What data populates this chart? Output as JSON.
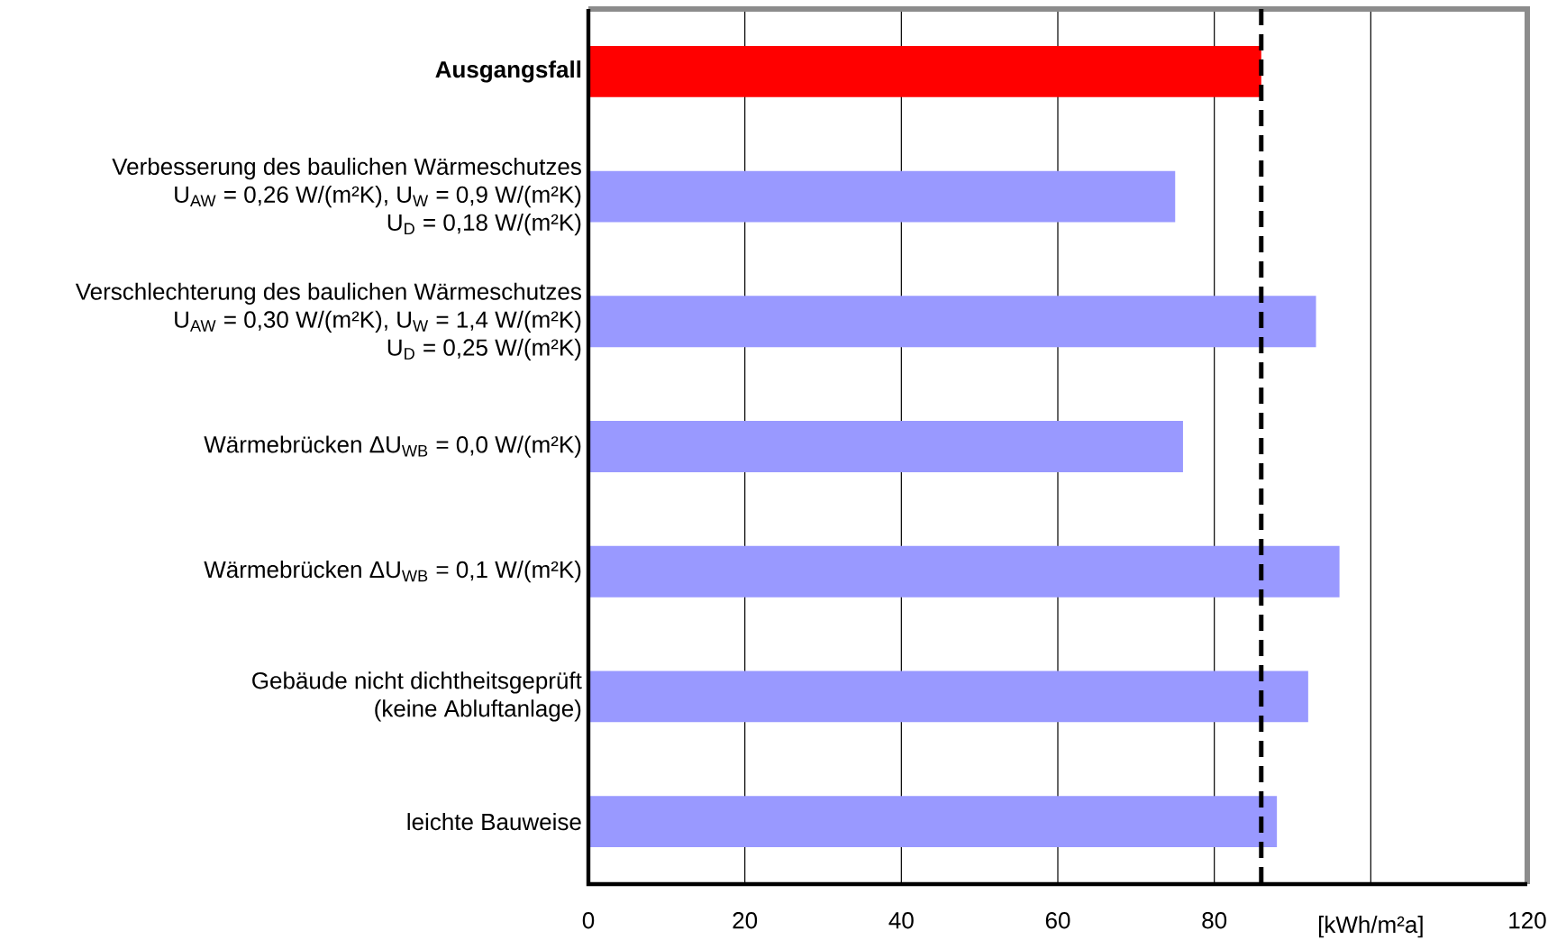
{
  "chart_data": {
    "type": "bar",
    "orientation": "horizontal",
    "categories": [
      "Ausgangsfall",
      "Verbesserung des baulichen Wärmeschutzes\nU$_{AW}$ = 0,26 W/(m²K), U$_{W}$ = 0,9 W/(m²K)\nU$_{D}$ = 0,18 W/(m²K)",
      "Verschlechterung des baulichen Wärmeschutzes\nU$_{AW}$ = 0,30 W/(m²K), U$_{W}$ = 1,4 W/(m²K)\nU$_{D}$ = 0,25 W/(m²K)",
      "Wärmebrücken ΔU$_{WB}$ = 0,0 W/(m²K)",
      "Wärmebrücken ΔU$_{WB}$ = 0,1 W/(m²K)",
      "Gebäude nicht dichtheitsgeprüft\n(keine Abluftanlage)",
      "leichte Bauweise"
    ],
    "values": [
      86,
      75,
      93,
      76,
      96,
      92,
      88
    ],
    "colors": [
      "#ff0000",
      "#9999ff",
      "#9999ff",
      "#9999ff",
      "#9999ff",
      "#9999ff",
      "#9999ff"
    ],
    "xlabel": "[kWh/m²a]",
    "xlim": [
      0,
      120
    ],
    "xticks": [
      0,
      20,
      40,
      60,
      80,
      {
        "value": 100,
        "label": null
      },
      120
    ],
    "grid": "x",
    "ref_lines": [
      {
        "axis": "x",
        "value": 86,
        "color": "#000000",
        "line_style": "dashed"
      }
    ]
  }
}
